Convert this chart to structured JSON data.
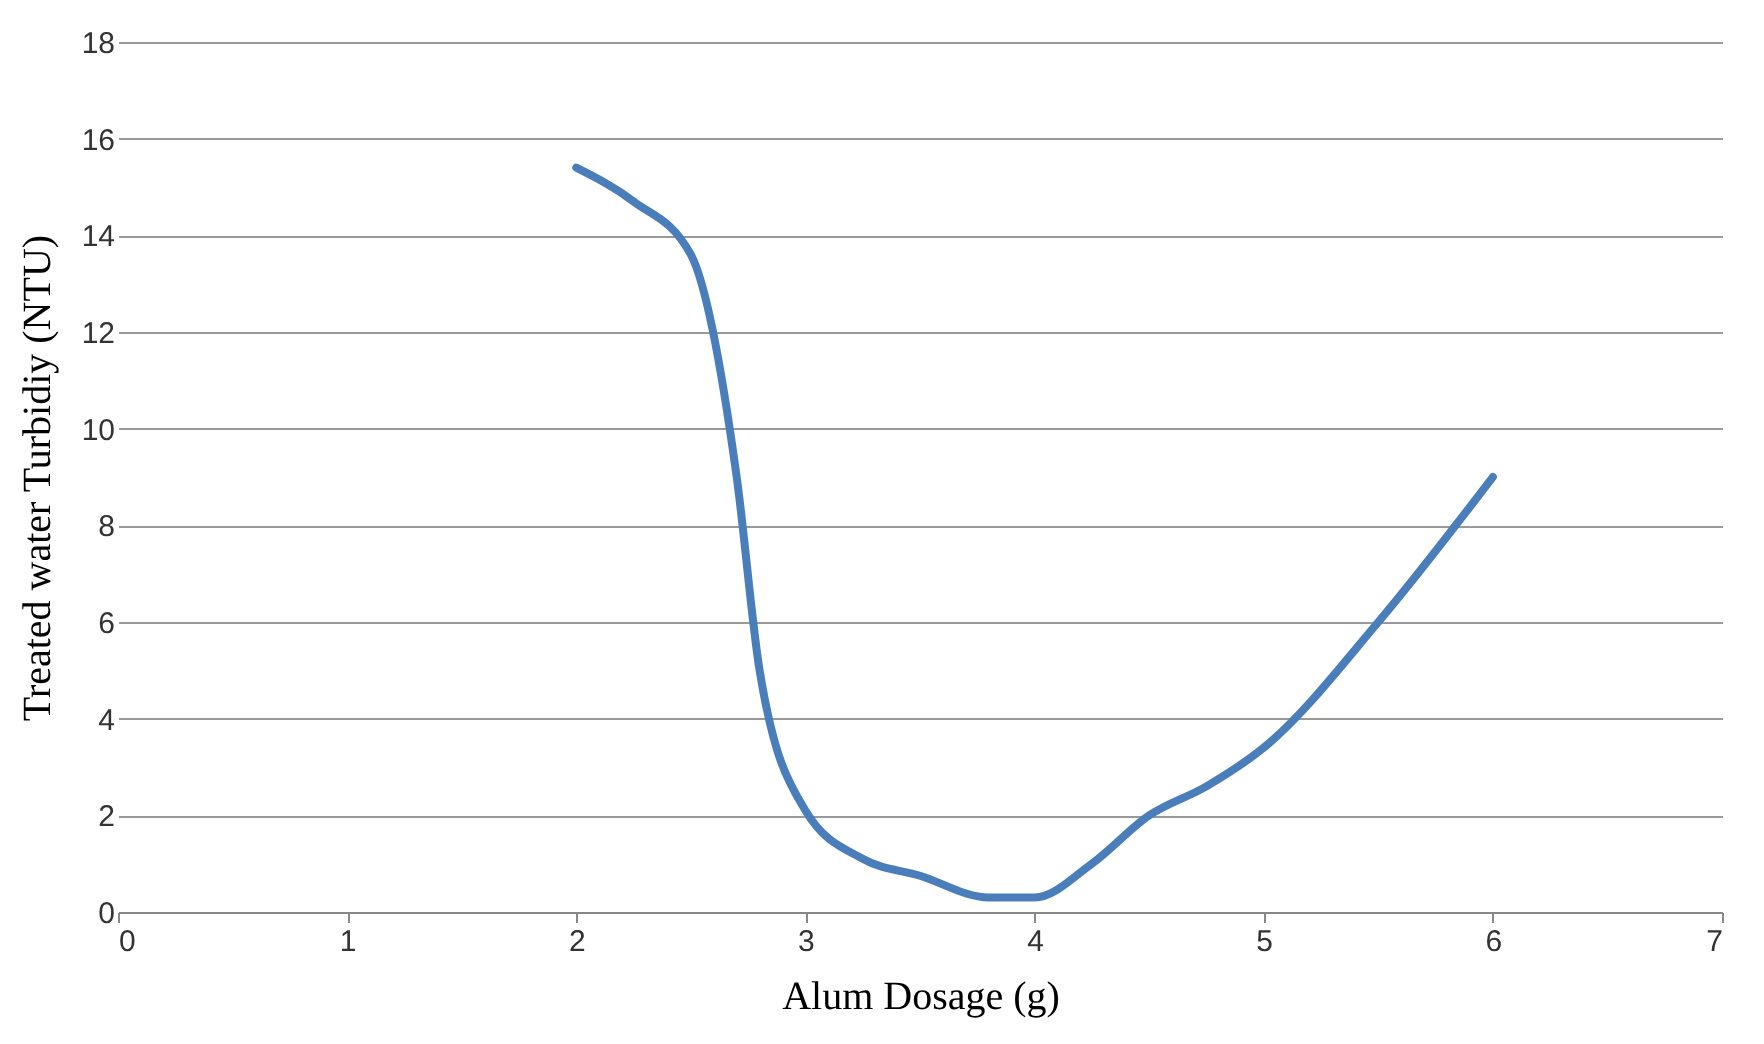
{
  "chart_data": {
    "type": "line",
    "xlabel": "Alum  Dosage  (g)",
    "ylabel": "Treated water  Turbidiy  (NTU)",
    "x": [
      2,
      2.25,
      2.5,
      2.7,
      2.8,
      3,
      3.25,
      3.5,
      3.8,
      4,
      4.25,
      4.5,
      4.75,
      5,
      5.5,
      6
    ],
    "series": [
      {
        "color": "#4a7ebb",
        "values": [
          15.4,
          14.7,
          13.6,
          9,
          5,
          2.1,
          1.1,
          0.75,
          0.3,
          0.3,
          1.0,
          2.0,
          2.6,
          3.4,
          6,
          9
        ]
      }
    ],
    "xlim": [
      0,
      7
    ],
    "xticks": [
      0,
      1,
      2,
      3,
      4,
      5,
      6,
      7
    ],
    "ylim": [
      0,
      18
    ],
    "yticks": [
      0,
      2,
      4,
      6,
      8,
      10,
      12,
      14,
      16,
      18
    ],
    "grid": "y",
    "marker": "none",
    "line_style": "solid"
  }
}
